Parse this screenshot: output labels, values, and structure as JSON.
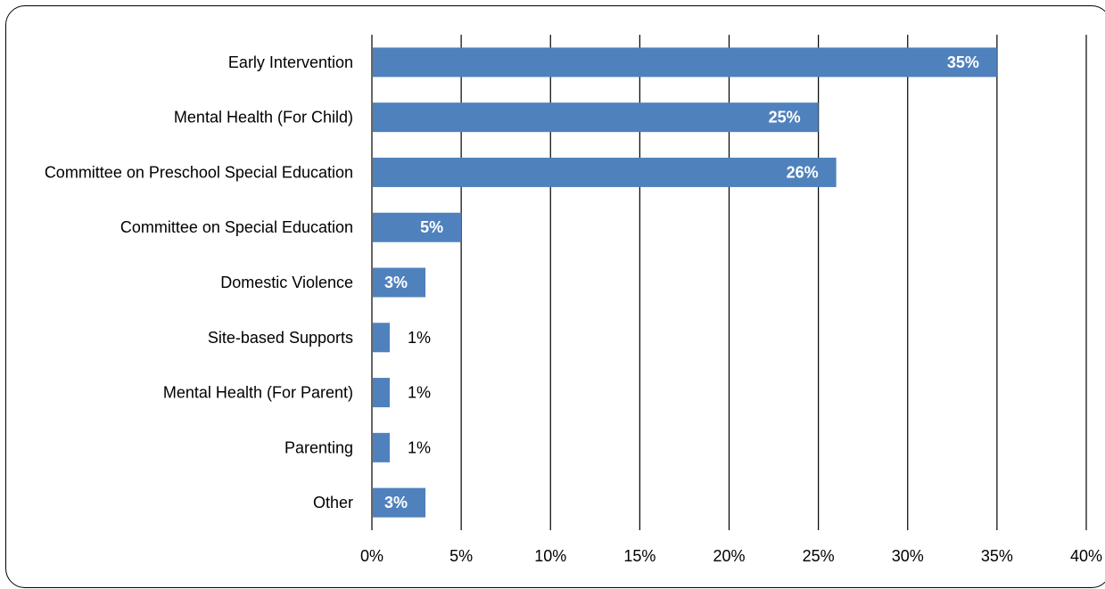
{
  "chart_data": {
    "type": "bar",
    "orientation": "horizontal",
    "categories": [
      "Early Intervention",
      "Mental Health (For Child)",
      "Committee on Preschool Special Education",
      "Committee on Special Education",
      "Domestic Violence",
      "Site-based Supports",
      "Mental Health (For Parent)",
      "Parenting",
      "Other"
    ],
    "values": [
      35,
      25,
      26,
      5,
      3,
      1,
      1,
      1,
      3
    ],
    "data_labels": [
      "35%",
      "25%",
      "26%",
      "5%",
      "3%",
      "1%",
      "1%",
      "1%",
      "3%"
    ],
    "xlim": [
      0,
      40
    ],
    "x_ticks": [
      0,
      5,
      10,
      15,
      20,
      25,
      30,
      35,
      40
    ],
    "x_tick_labels": [
      "0%",
      "5%",
      "10%",
      "15%",
      "20%",
      "25%",
      "30%",
      "35%",
      "40%"
    ],
    "grid": "vertical",
    "legend": "none",
    "title": "",
    "xlabel": "",
    "ylabel": "",
    "bar_color": "#4F81BD"
  }
}
